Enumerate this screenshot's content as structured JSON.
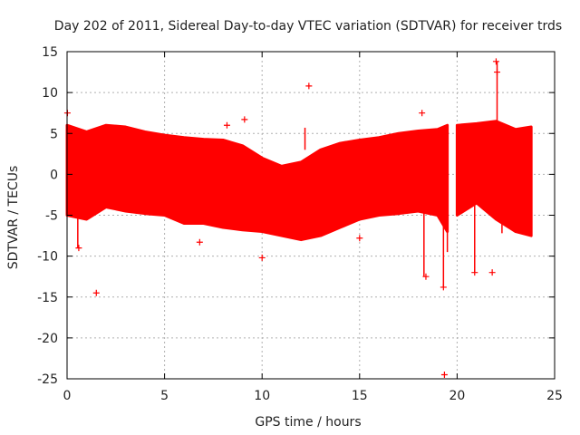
{
  "chart_data": {
    "type": "scatter",
    "title": "Day 202 of 2011, Sidereal Day-to-day VTEC variation (SDTVAR) for receiver trds",
    "xlabel": "GPS time / hours",
    "ylabel": "SDTVAR / TECUs",
    "xlim": [
      0,
      25
    ],
    "ylim": [
      -25,
      15
    ],
    "x_ticks": [
      0,
      5,
      10,
      15,
      20,
      25
    ],
    "y_ticks": [
      15,
      10,
      5,
      0,
      -5,
      -10,
      -15,
      -20,
      -25
    ],
    "grid": true,
    "marker": "+",
    "series_color": "#ff0000",
    "data_gap_hours": [
      19.6,
      20.0
    ],
    "band": {
      "x": [
        0,
        1,
        2,
        3,
        4,
        5,
        6,
        7,
        8,
        9,
        10,
        11,
        12,
        13,
        14,
        15,
        16,
        17,
        18,
        19,
        19.5,
        20.0,
        21,
        22,
        23,
        23.8
      ],
      "upper": [
        6.0,
        5.2,
        6.0,
        5.8,
        5.2,
        4.8,
        4.5,
        4.3,
        4.2,
        3.5,
        2.0,
        1.0,
        1.5,
        3.0,
        3.8,
        4.2,
        4.5,
        5.0,
        5.3,
        5.5,
        6.0,
        6.0,
        6.2,
        6.5,
        5.5,
        5.8
      ],
      "lower": [
        -5.0,
        -5.5,
        -4.0,
        -4.5,
        -4.8,
        -5.0,
        -6.0,
        -6.0,
        -6.5,
        -6.8,
        -7.0,
        -7.5,
        -8.0,
        -7.5,
        -6.5,
        -5.5,
        -5.0,
        -4.8,
        -4.5,
        -5.0,
        -7.0,
        -5.0,
        -3.5,
        -5.5,
        -7.0,
        -7.5
      ]
    },
    "outliers": [
      {
        "x": 0.02,
        "y": 7.5
      },
      {
        "x": 0.6,
        "y": -9.0
      },
      {
        "x": 1.5,
        "y": -14.5
      },
      {
        "x": 6.8,
        "y": -8.3
      },
      {
        "x": 8.2,
        "y": 6.0
      },
      {
        "x": 9.1,
        "y": 6.7
      },
      {
        "x": 10.0,
        "y": -10.2
      },
      {
        "x": 12.4,
        "y": 10.8
      },
      {
        "x": 15.0,
        "y": -7.8
      },
      {
        "x": 18.2,
        "y": 7.5
      },
      {
        "x": 18.4,
        "y": -12.5
      },
      {
        "x": 19.3,
        "y": -13.8
      },
      {
        "x": 19.35,
        "y": -24.5
      },
      {
        "x": 20.9,
        "y": -12.0
      },
      {
        "x": 21.8,
        "y": -12.0
      },
      {
        "x": 22.0,
        "y": 13.8
      },
      {
        "x": 22.05,
        "y": 12.5
      }
    ],
    "spikes": [
      {
        "x": 0.55,
        "y0": -5.0,
        "y1": -9.0
      },
      {
        "x": 12.2,
        "y0": 3.0,
        "y1": 5.7
      },
      {
        "x": 18.3,
        "y0": -4.5,
        "y1": -12.5
      },
      {
        "x": 19.3,
        "y0": -5.0,
        "y1": -13.8
      },
      {
        "x": 19.5,
        "y0": -5.5,
        "y1": -9.5
      },
      {
        "x": 20.9,
        "y0": -3.5,
        "y1": -12.0
      },
      {
        "x": 22.05,
        "y0": 6.5,
        "y1": 13.8
      },
      {
        "x": 22.3,
        "y0": -5.5,
        "y1": -7.2
      }
    ]
  }
}
